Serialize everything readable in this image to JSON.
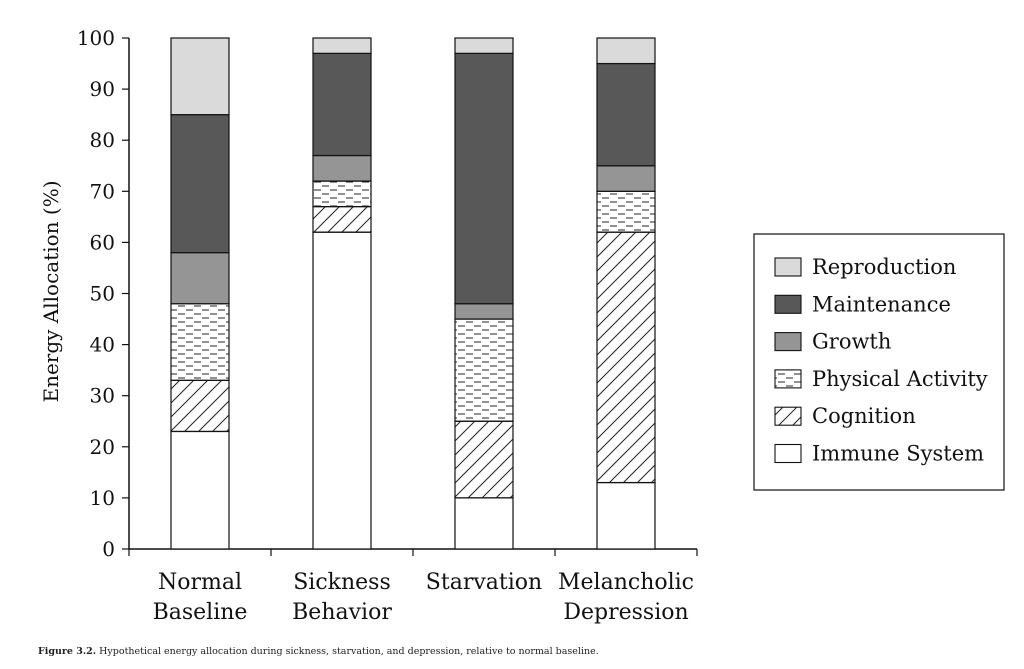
{
  "caption": {
    "label": "Figure 3.2.",
    "text": "Hypothetical energy allocation during sickness, starvation, and depression, relative to normal baseline."
  },
  "chart_data": {
    "type": "bar",
    "stacked": true,
    "ylabel": "Energy Allocation (%)",
    "ylim": [
      0,
      100
    ],
    "yticks": [
      0,
      10,
      20,
      30,
      40,
      50,
      60,
      70,
      80,
      90,
      100
    ],
    "categories": [
      [
        "Normal",
        "Baseline"
      ],
      [
        "Sickness",
        "Behavior"
      ],
      [
        "Starvation"
      ],
      [
        "Melancholic",
        "Depression"
      ]
    ],
    "series": [
      {
        "name": "Immune System",
        "fill": "#ffffff",
        "pattern": "none",
        "values": [
          23,
          62,
          10,
          13
        ]
      },
      {
        "name": "Cognition",
        "fill": "#ffffff",
        "pattern": "hatch",
        "values": [
          10,
          5,
          15,
          49
        ]
      },
      {
        "name": "Physical Activity",
        "fill": "#ffffff",
        "pattern": "dashes",
        "values": [
          15,
          5,
          20,
          8
        ]
      },
      {
        "name": "Growth",
        "fill": "#959595",
        "pattern": "none",
        "values": [
          10,
          5,
          3,
          5
        ]
      },
      {
        "name": "Maintenance",
        "fill": "#585858",
        "pattern": "none",
        "values": [
          27,
          20,
          49,
          20
        ]
      },
      {
        "name": "Reproduction",
        "fill": "#dadada",
        "pattern": "none",
        "values": [
          15,
          3,
          3,
          5
        ]
      }
    ],
    "legend": {
      "placement": "right",
      "order": [
        "Reproduction",
        "Maintenance",
        "Growth",
        "Physical Activity",
        "Cognition",
        "Immune System"
      ]
    },
    "grid": false
  }
}
